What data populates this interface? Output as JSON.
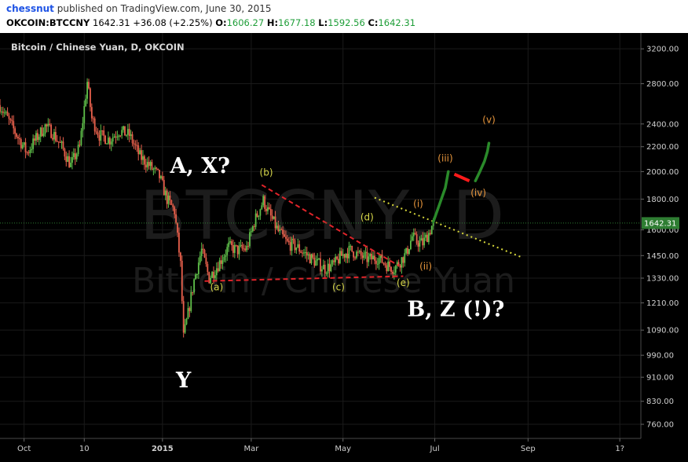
{
  "header": {
    "author": "chessnut",
    "published_text": "published on TradingView.com, June 30, 2015",
    "symbol": "OKCOIN:BTCCNY",
    "price": "1642.31",
    "change": "+36.08 (+2.25%)",
    "open_label": "O:",
    "open": "1606.27",
    "high_label": "H:",
    "high": "1677.18",
    "low_label": "L:",
    "low": "1592.56",
    "close_label": "C:",
    "close": "1642.31"
  },
  "chart": {
    "title": "Bitcoin / Chinese Yuan, D, OKCOIN",
    "watermark_symbol": "BTCCNY, D",
    "watermark_name": "Bitcoin / Chinese Yuan",
    "last_price_label": "1642.31"
  },
  "colors": {
    "background": "#000000",
    "up": "#5fbf4a",
    "down": "#e8604c",
    "grid": "#1a1a1a",
    "red_dashed": "#e0242a",
    "yellow_dotted": "#d8d83a",
    "green_path": "#2a8a2a",
    "orange_label": "#e8963c",
    "yellow_label": "#d8d84a",
    "last_price": "#2e7d32"
  },
  "chart_data": {
    "type": "candlestick",
    "scale": "log",
    "ylim": [
      720,
      3400
    ],
    "xlim": [
      "2014-09-15",
      "2015-11-15"
    ],
    "y_ticks": [
      "3200.00",
      "2800.00",
      "2400.00",
      "2200.00",
      "2000.00",
      "1800.00",
      "1600.00",
      "1450.00",
      "1330.00",
      "1210.00",
      "1090.00",
      "990.00",
      "910.00",
      "830.00",
      "760.00"
    ],
    "x_ticks": [
      {
        "label": "Oct",
        "date": "2014-10-01"
      },
      {
        "label": "10",
        "date": "2014-11-10"
      },
      {
        "label": "2015",
        "date": "2015-01-01"
      },
      {
        "label": "Mar",
        "date": "2015-03-01"
      },
      {
        "label": "May",
        "date": "2015-05-01"
      },
      {
        "label": "Jul",
        "date": "2015-07-01"
      },
      {
        "label": "Sep",
        "date": "2015-09-01"
      },
      {
        "label": "1?",
        "date": "2015-11-01"
      }
    ],
    "last_price": 1642.31,
    "price_path": [
      [
        "2014-09-15",
        2580
      ],
      [
        "2014-09-20",
        2450
      ],
      [
        "2014-09-27",
        2280
      ],
      [
        "2014-10-03",
        2150
      ],
      [
        "2014-10-08",
        2250
      ],
      [
        "2014-10-15",
        2380
      ],
      [
        "2014-10-20",
        2320
      ],
      [
        "2014-10-26",
        2200
      ],
      [
        "2014-11-01",
        2050
      ],
      [
        "2014-11-07",
        2200
      ],
      [
        "2014-11-12",
        2820
      ],
      [
        "2014-11-15",
        2450
      ],
      [
        "2014-11-20",
        2300
      ],
      [
        "2014-11-27",
        2260
      ],
      [
        "2014-12-03",
        2340
      ],
      [
        "2014-12-10",
        2300
      ],
      [
        "2014-12-17",
        2120
      ],
      [
        "2014-12-23",
        2050
      ],
      [
        "2014-12-30",
        1960
      ],
      [
        "2015-01-04",
        1800
      ],
      [
        "2015-01-09",
        1720
      ],
      [
        "2015-01-13",
        1400
      ],
      [
        "2015-01-15",
        1060
      ],
      [
        "2015-01-18",
        1160
      ],
      [
        "2015-01-22",
        1320
      ],
      [
        "2015-01-27",
        1480
      ],
      [
        "2015-02-01",
        1330
      ],
      [
        "2015-02-07",
        1400
      ],
      [
        "2015-02-14",
        1500
      ],
      [
        "2015-02-20",
        1480
      ],
      [
        "2015-02-26",
        1490
      ],
      [
        "2015-03-03",
        1650
      ],
      [
        "2015-03-09",
        1790
      ],
      [
        "2015-03-14",
        1680
      ],
      [
        "2015-03-19",
        1590
      ],
      [
        "2015-03-25",
        1520
      ],
      [
        "2015-03-31",
        1500
      ],
      [
        "2015-04-06",
        1460
      ],
      [
        "2015-04-12",
        1420
      ],
      [
        "2015-04-19",
        1380
      ],
      [
        "2015-04-25",
        1400
      ],
      [
        "2015-04-30",
        1450
      ],
      [
        "2015-05-06",
        1480
      ],
      [
        "2015-05-12",
        1450
      ],
      [
        "2015-05-18",
        1430
      ],
      [
        "2015-05-24",
        1440
      ],
      [
        "2015-05-30",
        1400
      ],
      [
        "2015-06-04",
        1380
      ],
      [
        "2015-06-08",
        1420
      ],
      [
        "2015-06-12",
        1460
      ],
      [
        "2015-06-16",
        1560
      ],
      [
        "2015-06-19",
        1530
      ],
      [
        "2015-06-23",
        1520
      ],
      [
        "2015-06-27",
        1580
      ],
      [
        "2015-06-30",
        1642
      ]
    ],
    "annotations": [
      {
        "text": "A, X?",
        "date": "2015-01-26",
        "price": 1990,
        "style": "big",
        "color": "#ffffff"
      },
      {
        "text": "Y",
        "date": "2015-01-15",
        "price": 875,
        "style": "big",
        "color": "#ffffff"
      },
      {
        "text": "B, Z (!)?",
        "date": "2015-07-15",
        "price": 1150,
        "style": "big",
        "color": "#ffffff"
      },
      {
        "text": "(b)",
        "date": "2015-03-11",
        "price": 1970,
        "style": "wave",
        "color": "#d8d84a"
      },
      {
        "text": "(a)",
        "date": "2015-02-06",
        "price": 1270,
        "style": "wave",
        "color": "#d8d84a"
      },
      {
        "text": "(c)",
        "date": "2015-04-28",
        "price": 1270,
        "style": "wave",
        "color": "#d8d84a"
      },
      {
        "text": "(d)",
        "date": "2015-05-17",
        "price": 1660,
        "style": "wave",
        "color": "#d8d84a"
      },
      {
        "text": "(e)",
        "date": "2015-06-10",
        "price": 1290,
        "style": "wave",
        "color": "#d8d84a"
      },
      {
        "text": "(i)",
        "date": "2015-06-20",
        "price": 1745,
        "style": "wave",
        "color": "#e8963c"
      },
      {
        "text": "(ii)",
        "date": "2015-06-25",
        "price": 1375,
        "style": "wave",
        "color": "#e8963c"
      },
      {
        "text": "(iii)",
        "date": "2015-07-08",
        "price": 2080,
        "style": "wave",
        "color": "#e8963c"
      },
      {
        "text": "(iv)",
        "date": "2015-07-30",
        "price": 1820,
        "style": "wave",
        "color": "#e8963c"
      },
      {
        "text": "(v)",
        "date": "2015-08-06",
        "price": 2410,
        "style": "wave",
        "color": "#e8963c"
      }
    ],
    "lines": [
      {
        "type": "red_dashed",
        "points": [
          [
            "2015-03-08",
            1900
          ],
          [
            "2015-06-07",
            1395
          ]
        ]
      },
      {
        "type": "red_dashed",
        "points": [
          [
            "2015-01-29",
            1315
          ],
          [
            "2015-06-10",
            1340
          ]
        ]
      },
      {
        "type": "yellow_dotted",
        "points": [
          [
            "2015-05-22",
            1810
          ],
          [
            "2015-08-28",
            1440
          ]
        ]
      },
      {
        "type": "green_projection",
        "points": [
          [
            "2015-06-30",
            1650
          ],
          [
            "2015-07-04",
            1760
          ],
          [
            "2015-07-08",
            1880
          ],
          [
            "2015-07-10",
            2000
          ]
        ]
      },
      {
        "type": "green_projection",
        "points": [
          [
            "2015-07-28",
            1930
          ],
          [
            "2015-07-31",
            2000
          ],
          [
            "2015-08-03",
            2080
          ],
          [
            "2015-08-05",
            2160
          ],
          [
            "2015-08-06",
            2230
          ]
        ]
      },
      {
        "type": "red_solid",
        "points": [
          [
            "2015-07-14",
            1980
          ],
          [
            "2015-07-24",
            1930
          ]
        ]
      }
    ]
  }
}
